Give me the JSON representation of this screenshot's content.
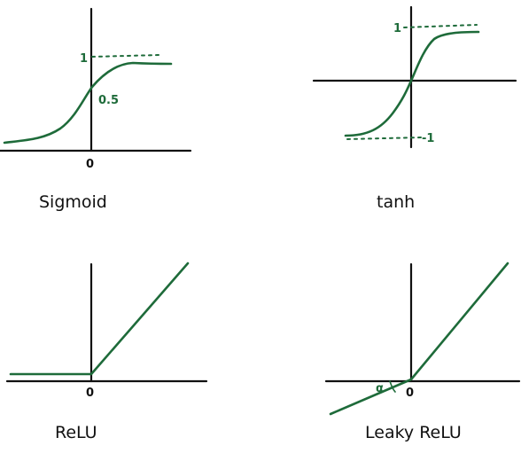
{
  "colors": {
    "curve": "#1e6b3a",
    "axis": "#111111",
    "background": "#ffffff"
  },
  "panels": [
    {
      "title": "Sigmoid",
      "origin_label": "0",
      "upper_label": "1",
      "mid_label": "0.5"
    },
    {
      "title": "tanh",
      "upper_label": "1",
      "lower_label": "-1"
    },
    {
      "title": "ReLU",
      "origin_label": "0"
    },
    {
      "title": "Leaky ReLU",
      "origin_label": "0",
      "slope_label": "α"
    }
  ]
}
